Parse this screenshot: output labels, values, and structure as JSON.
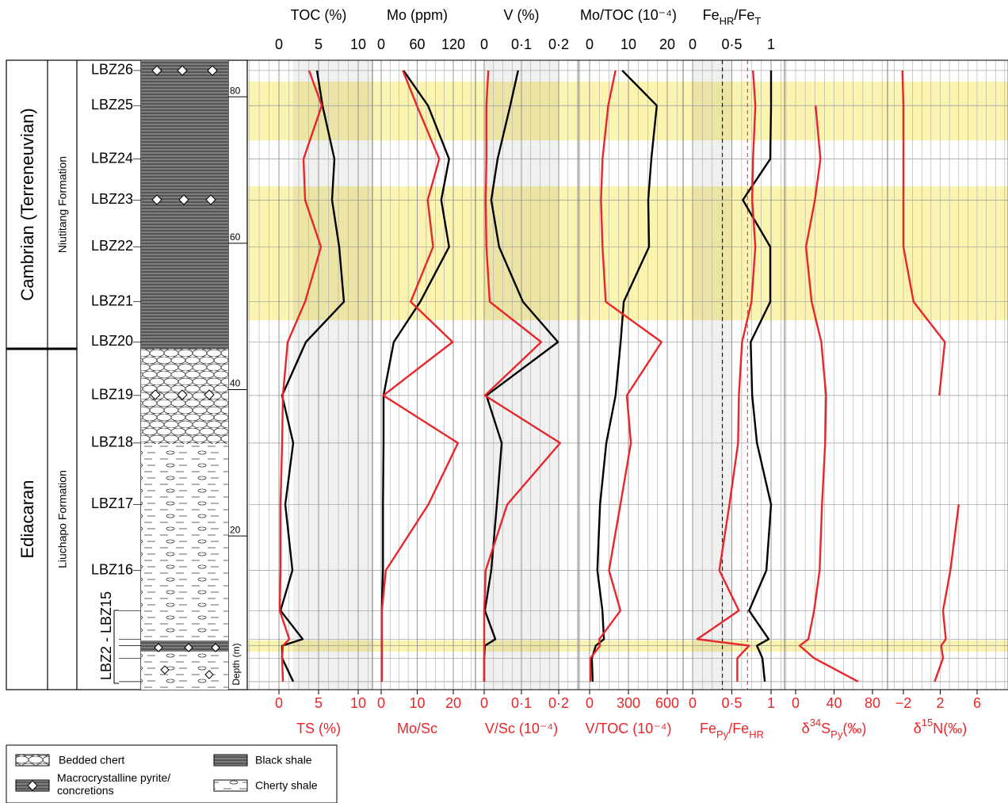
{
  "columns": {
    "era": [
      "Cambrian (Terreneuvian)",
      "Ediacaran"
    ],
    "formation": [
      "Niutitang Formation",
      "Liuchapo Formation"
    ],
    "samples_group_label": "LBZ2 - LBZ15",
    "depth_label": "Depth (m)"
  },
  "chart_data": {
    "type": "line",
    "depths": [
      83.6,
      78.8,
      71.5,
      65.9,
      59.5,
      52.0,
      46.5,
      39.2,
      32.7,
      24.3,
      15.3,
      9.8,
      5.9,
      5.0,
      3.3,
      0.1
    ],
    "samples": [
      "LBZ26",
      "LBZ25",
      "LBZ24",
      "LBZ23",
      "LBZ22",
      "LBZ21",
      "LBZ20",
      "LBZ19",
      "LBZ18",
      "LBZ17",
      "LBZ16",
      null,
      null,
      null,
      null,
      null
    ],
    "ylim": [
      -1,
      85
    ],
    "yticks": [
      20,
      40,
      60,
      80
    ],
    "panels": [
      {
        "top_label": "TOC (%)",
        "xlim": [
          0,
          10
        ],
        "xticks": [
          0,
          5,
          10
        ],
        "bottom_label": "TS (%)",
        "x2lim": [
          0,
          10
        ],
        "x2ticks": [
          0,
          5,
          10
        ],
        "series": [
          {
            "axis": "x",
            "color": "#000000",
            "values": [
              4.8,
              5.5,
              7.0,
              6.7,
              7.6,
              8.2,
              3.4,
              0.4,
              1.8,
              0.8,
              1.7,
              0.2,
              3.0,
              0.4,
              0.4,
              1.8
            ]
          },
          {
            "axis": "x2",
            "color": "#e8262a",
            "values": [
              3.8,
              5.4,
              3.1,
              3.3,
              5.3,
              3.3,
              1.1,
              0.5,
              0.4,
              0.2,
              0.2,
              0.1,
              1.3,
              0.5,
              0.4,
              0.5
            ]
          }
        ]
      },
      {
        "top_label": "Mo (ppm)",
        "xlim": [
          0,
          120
        ],
        "xticks": [
          0,
          60,
          120
        ],
        "bottom_label": "Mo/Sc",
        "x2lim": [
          0,
          20
        ],
        "x2ticks": [
          0,
          10,
          20
        ],
        "series": [
          {
            "axis": "x",
            "color": "#000000",
            "values": [
              37,
              78,
              113,
              100,
              113,
              65,
              21,
              4,
              4,
              3,
              3,
              1,
              1,
              1,
              1,
              1
            ]
          },
          {
            "axis": "x2",
            "color": "#e8262a",
            "values": [
              6.0,
              9.9,
              16.1,
              12.9,
              14.4,
              8.2,
              19.8,
              0.6,
              21.3,
              13.1,
              1.3,
              0.2,
              0.2,
              0.2,
              0.2,
              0.2
            ]
          }
        ]
      },
      {
        "top_label": "V (%)",
        "xlim": [
          0,
          0.2
        ],
        "xticks": [
          0,
          {
            "value": 0.1,
            "label": "0·1"
          },
          {
            "value": 0.2,
            "label": "0·2"
          }
        ],
        "bottom_label": "V/Sc (10⁻⁴)",
        "x2lim": [
          0,
          0.2
        ],
        "x2ticks": [
          0,
          {
            "value": 0.1,
            "label": "0·1"
          },
          {
            "value": 0.2,
            "label": "0·2"
          }
        ],
        "series": [
          {
            "axis": "x",
            "color": "#000000",
            "values": [
              0.091,
              0.07,
              0.036,
              0.019,
              0.04,
              0.104,
              0.198,
              0.006,
              0.047,
              0.034,
              0.019,
              0.002,
              0.03,
              0.002,
              0,
              0
            ]
          },
          {
            "axis": "x2",
            "color": "#e8262a",
            "values": [
              0.011,
              0.006,
              0.006,
              0.004,
              0.006,
              0.015,
              0.153,
              0.002,
              0.204,
              0.062,
              0.004,
              0,
              0,
              0,
              0,
              0
            ]
          }
        ]
      },
      {
        "top_label": "Mo/TOC (10⁻⁴)",
        "xlim": [
          0,
          20
        ],
        "xticks": [
          0,
          10,
          20
        ],
        "bottom_label": "V/TOC (10⁻⁴)",
        "x2lim": [
          0,
          600
        ],
        "x2ticks": [
          0,
          300,
          600
        ],
        "series": [
          {
            "axis": "x",
            "color": "#000000",
            "values": [
              8.4,
              17.3,
              15.9,
              15.1,
              15.3,
              8.8,
              8.0,
              6.7,
              4.3,
              2.7,
              2.0,
              3.3,
              3.7,
              1.6,
              0.6,
              0.8
            ]
          },
          {
            "axis": "x2",
            "color": "#e8262a",
            "values": [
              200,
              144,
              100,
              88,
              100,
              125,
              556,
              288,
              319,
              238,
              150,
              238,
              75,
              81,
              6,
              6
            ]
          }
        ]
      },
      {
        "top_label": [
          {
            "text": "Fe"
          },
          {
            "text": "HR",
            "shift": "sub"
          },
          {
            "text": "/Fe"
          },
          {
            "text": "T",
            "shift": "sub"
          }
        ],
        "xlim": [
          0,
          1
        ],
        "xticks": [
          0,
          {
            "value": 0.5,
            "label": "0·5"
          },
          1
        ],
        "bottom_label": [
          {
            "text": "Fe"
          },
          {
            "text": "Py",
            "shift": "sub"
          },
          {
            "text": "/Fe"
          },
          {
            "text": "HR",
            "shift": "sub"
          }
        ],
        "x2lim": [
          0,
          1
        ],
        "x2ticks": [
          0,
          {
            "value": 0.5,
            "label": "0·5"
          },
          1
        ],
        "reference_lines": [
          {
            "value": 0.38,
            "axis": "x",
            "color": "#000000"
          },
          {
            "value": 0.7,
            "axis": "x2",
            "color": "#e8262a"
          }
        ],
        "series": [
          {
            "axis": "x",
            "color": "#000000",
            "values": [
              1.0,
              1.0,
              0.99,
              0.64,
              0.99,
              0.99,
              0.74,
              0.76,
              0.82,
              1.0,
              0.94,
              0.72,
              0.97,
              0.82,
              0.89,
              0.92
            ]
          },
          {
            "axis": "x2",
            "color": "#e8262a",
            "values": [
              0.77,
              0.8,
              0.77,
              0.76,
              0.8,
              0.75,
              0.63,
              0.59,
              0.58,
              0.47,
              0.34,
              0.59,
              0.06,
              0.72,
              0.57,
              0.57
            ]
          }
        ]
      },
      {
        "bottom_label": [
          {
            "text": "δ"
          },
          {
            "text": "34",
            "shift": "sup"
          },
          {
            "text": "S"
          },
          {
            "text": "Py",
            "shift": "sub"
          },
          {
            "text": "(‰)"
          }
        ],
        "x2lim": [
          0,
          80
        ],
        "x2ticks": [
          0,
          40,
          80
        ],
        "series": [
          {
            "axis": "x2",
            "color": "#e8262a",
            "values": [
              null,
              20.8,
              25.8,
              20,
              10.8,
              16.7,
              26.7,
              31.7,
              30.8,
              27.5,
              25,
              19.2,
              13.3,
              4.2,
              19.2,
              65
            ]
          }
        ]
      },
      {
        "bottom_label": [
          {
            "text": "δ"
          },
          {
            "text": "15",
            "shift": "sup"
          },
          {
            "text": "N(‰)"
          }
        ],
        "x2lim": [
          -2,
          6
        ],
        "x2ticks": [
          {
            "value": -2,
            "label": "−2"
          },
          2,
          6
        ],
        "series": [
          {
            "axis": "x2",
            "color": "#e8262a",
            "values": [
              -2.1,
              -2,
              -2,
              -2,
              -2,
              -0.9,
              2.5,
              1.9,
              null,
              4.0,
              3.1,
              2.3,
              2.6,
              2.1,
              2.3,
              1.4
            ]
          }
        ]
      }
    ]
  },
  "legend": [
    "Bedded chert",
    "Macrocrystalline pyrite/ concretions",
    "Black shale",
    "Cherty shale"
  ]
}
